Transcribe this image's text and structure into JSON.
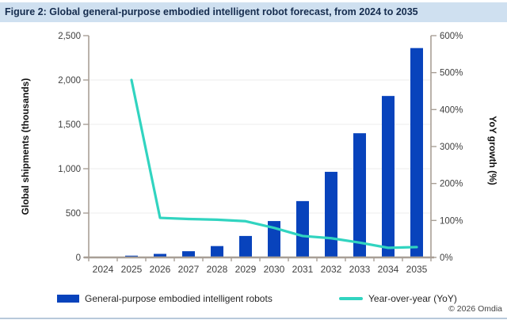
{
  "title": "Figure 2: Global general-purpose embodied intelligent robot forecast, from 2024 to 2035",
  "chart_data": {
    "type": "combo-bar-line",
    "categories": [
      "2024",
      "2025",
      "2026",
      "2027",
      "2028",
      "2029",
      "2030",
      "2031",
      "2032",
      "2033",
      "2034",
      "2035"
    ],
    "series": [
      {
        "name": "General-purpose embodied intelligent robots",
        "type": "bar",
        "axis": "left",
        "color": "#0843bc",
        "values": [
          8,
          20,
          40,
          70,
          128,
          242,
          410,
          635,
          965,
          1400,
          1820,
          2360
        ]
      },
      {
        "name": "Year-over-year (YoY)",
        "type": "line",
        "axis": "right",
        "color": "#31d4c0",
        "values_percent": [
          null,
          480,
          107,
          104,
          102,
          98,
          80,
          58,
          52,
          40,
          26,
          28
        ]
      }
    ],
    "left_axis": {
      "label": "Global shipments (thousands)",
      "range": [
        0,
        2500
      ],
      "tick_values": [
        0,
        500,
        1000,
        1500,
        2000,
        2500
      ],
      "tick_labels": [
        "0",
        "500",
        "1,000",
        "1,500",
        "2,000",
        "2,500"
      ]
    },
    "right_axis": {
      "label": "YoY growth (%)",
      "range": [
        0,
        600
      ],
      "tick_values": [
        0,
        100,
        200,
        300,
        400,
        500,
        600
      ],
      "tick_labels": [
        "0%",
        "100%",
        "200%",
        "300%",
        "400%",
        "500%",
        "600%"
      ]
    },
    "grid": "horizontal",
    "legend_position": "bottom"
  },
  "footer": {
    "copyright": "© 2026 Omdia"
  },
  "colors": {
    "title_bg": "#cfe0f0",
    "title_text": "#152c4e",
    "axis": "#a89f96",
    "tick_text": "#404040",
    "grid": "#ececec",
    "bar": "#0843bc",
    "line": "#31d4c0",
    "bottom_border": "#b7c9da"
  }
}
